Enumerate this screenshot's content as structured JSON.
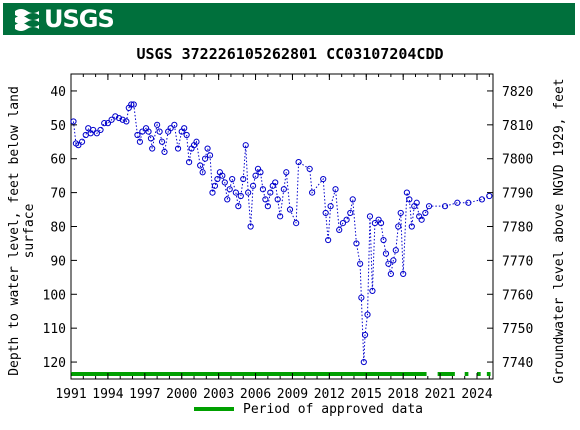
{
  "header": {
    "brand": "USGS",
    "logo_icon": "usgs-wave-icon",
    "banner_color": "#00703c"
  },
  "chart_data": {
    "type": "scatter",
    "title": "USGS 372226105262801 CC03107204CDD",
    "ylabel_left": "Depth to water level, feet below land surface",
    "ylabel_left_lines": [
      "Depth to water level, feet below land",
      "surface"
    ],
    "ylabel_right": "Groundwater level above NGVD 1929, feet",
    "x_ticks": [
      1991,
      1994,
      1997,
      2000,
      2003,
      2006,
      2009,
      2012,
      2015,
      2018,
      2021,
      2024
    ],
    "xlim": [
      1991,
      2025.3
    ],
    "ylim_left": [
      35,
      125
    ],
    "left_ticks": [
      40,
      50,
      60,
      70,
      80,
      90,
      100,
      110,
      120
    ],
    "right_ticks": [
      7820,
      7810,
      7800,
      7790,
      7780,
      7770,
      7760,
      7750,
      7740
    ],
    "datum_offset": 7860,
    "grid": false,
    "series": [
      {
        "color": "#0000cc",
        "style": "dotted line with open circle markers",
        "points": [
          [
            1991.2,
            49
          ],
          [
            1991.4,
            55.5
          ],
          [
            1991.6,
            56
          ],
          [
            1991.9,
            55
          ],
          [
            1992.2,
            53
          ],
          [
            1992.4,
            51
          ],
          [
            1992.6,
            52.5
          ],
          [
            1992.8,
            51.5
          ],
          [
            1993.1,
            52.5
          ],
          [
            1993.4,
            51.5
          ],
          [
            1993.7,
            49.5
          ],
          [
            1994.0,
            49.5
          ],
          [
            1994.3,
            48.5
          ],
          [
            1994.6,
            47.5
          ],
          [
            1994.9,
            48
          ],
          [
            1995.2,
            48.5
          ],
          [
            1995.5,
            49
          ],
          [
            1995.7,
            45
          ],
          [
            1995.9,
            44
          ],
          [
            1996.1,
            44
          ],
          [
            1996.4,
            53
          ],
          [
            1996.6,
            55
          ],
          [
            1996.8,
            52
          ],
          [
            1997.1,
            51
          ],
          [
            1997.3,
            52
          ],
          [
            1997.5,
            54
          ],
          [
            1997.6,
            57
          ],
          [
            1998.0,
            50
          ],
          [
            1998.2,
            52
          ],
          [
            1998.4,
            55
          ],
          [
            1998.6,
            58
          ],
          [
            1998.9,
            52
          ],
          [
            1999.1,
            51
          ],
          [
            1999.4,
            50
          ],
          [
            1999.7,
            57
          ],
          [
            2000.0,
            52
          ],
          [
            2000.2,
            51
          ],
          [
            2000.4,
            53
          ],
          [
            2000.6,
            61
          ],
          [
            2000.8,
            57
          ],
          [
            2001.0,
            56
          ],
          [
            2001.2,
            55
          ],
          [
            2001.5,
            62
          ],
          [
            2001.7,
            64
          ],
          [
            2001.9,
            60
          ],
          [
            2002.1,
            57
          ],
          [
            2002.3,
            59
          ],
          [
            2002.5,
            70
          ],
          [
            2002.7,
            68
          ],
          [
            2002.9,
            66
          ],
          [
            2003.1,
            64
          ],
          [
            2003.3,
            65
          ],
          [
            2003.5,
            67
          ],
          [
            2003.7,
            72
          ],
          [
            2003.9,
            69
          ],
          [
            2004.1,
            66
          ],
          [
            2004.4,
            70
          ],
          [
            2004.6,
            74
          ],
          [
            2004.8,
            71
          ],
          [
            2005.0,
            66
          ],
          [
            2005.2,
            56
          ],
          [
            2005.4,
            70
          ],
          [
            2005.6,
            80
          ],
          [
            2005.8,
            68
          ],
          [
            2006.0,
            65
          ],
          [
            2006.2,
            63
          ],
          [
            2006.4,
            64
          ],
          [
            2006.6,
            69
          ],
          [
            2006.8,
            72
          ],
          [
            2007.0,
            74
          ],
          [
            2007.2,
            70
          ],
          [
            2007.4,
            68
          ],
          [
            2007.6,
            67
          ],
          [
            2007.8,
            72
          ],
          [
            2008.0,
            77
          ],
          [
            2008.3,
            69
          ],
          [
            2008.5,
            64
          ],
          [
            2008.8,
            75
          ],
          [
            2009.3,
            79
          ],
          [
            2009.5,
            61
          ],
          [
            2010.4,
            63
          ],
          [
            2010.6,
            70
          ],
          [
            2011.5,
            66
          ],
          [
            2011.7,
            76
          ],
          [
            2011.9,
            84
          ],
          [
            2012.1,
            74
          ],
          [
            2012.5,
            69
          ],
          [
            2012.8,
            81
          ],
          [
            2013.1,
            79
          ],
          [
            2013.4,
            78
          ],
          [
            2013.7,
            76
          ],
          [
            2013.9,
            72
          ],
          [
            2014.2,
            85
          ],
          [
            2014.5,
            91
          ],
          [
            2014.6,
            101
          ],
          [
            2014.8,
            120
          ],
          [
            2014.9,
            112
          ],
          [
            2015.1,
            106
          ],
          [
            2015.3,
            77
          ],
          [
            2015.5,
            99
          ],
          [
            2015.7,
            79
          ],
          [
            2016.0,
            78
          ],
          [
            2016.2,
            79
          ],
          [
            2016.4,
            84
          ],
          [
            2016.6,
            88
          ],
          [
            2016.8,
            91
          ],
          [
            2017.0,
            94
          ],
          [
            2017.2,
            90
          ],
          [
            2017.4,
            87
          ],
          [
            2017.6,
            80
          ],
          [
            2017.8,
            76
          ],
          [
            2018.0,
            94
          ],
          [
            2018.3,
            70
          ],
          [
            2018.5,
            72
          ],
          [
            2018.7,
            80
          ],
          [
            2018.9,
            74
          ],
          [
            2019.1,
            73
          ],
          [
            2019.3,
            77
          ],
          [
            2019.5,
            78
          ],
          [
            2019.8,
            76
          ],
          [
            2020.1,
            74
          ],
          [
            2021.4,
            74
          ],
          [
            2022.4,
            73
          ],
          [
            2023.3,
            73
          ],
          [
            2024.4,
            72
          ],
          [
            2025.0,
            71
          ]
        ]
      }
    ],
    "approved_periods": [
      [
        1991,
        2019.9
      ],
      [
        2020.8,
        2022.2
      ],
      [
        2023.0,
        2023.3
      ],
      [
        2024.0,
        2024.3
      ],
      [
        2024.8,
        2025.1
      ]
    ],
    "approved_color": "#00a000",
    "legend": {
      "label": "Period of approved data",
      "placement": "bottom-center"
    }
  }
}
